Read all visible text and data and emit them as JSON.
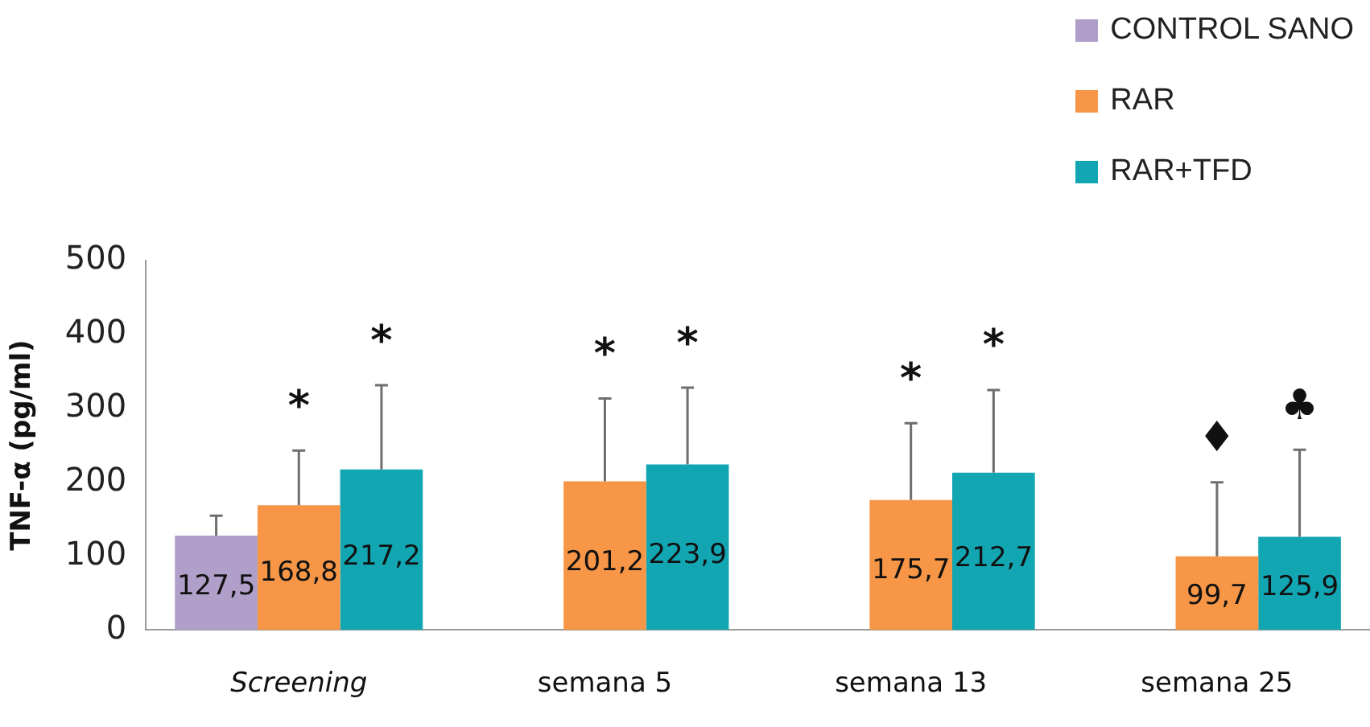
{
  "chart_data": {
    "type": "bar",
    "ylabel": "TNF-α (pg/ml)",
    "categories": [
      "Screening",
      "semana 5",
      "semana 13",
      "semana 25"
    ],
    "series": [
      {
        "name": "CONTROL SANO",
        "color": "#b09fc8",
        "values": [
          127.5,
          null,
          null,
          null
        ],
        "errors": [
          27,
          null,
          null,
          null
        ],
        "value_labels": [
          "127,5",
          null,
          null,
          null
        ]
      },
      {
        "name": "RAR",
        "color": "#f79646",
        "values": [
          168.8,
          201.2,
          175.7,
          99.7
        ],
        "errors": [
          74,
          112,
          104,
          100
        ],
        "value_labels": [
          "168,8",
          "201,2",
          "175,7",
          "99,7"
        ]
      },
      {
        "name": "RAR+TFD",
        "color": "#12a6b3",
        "values": [
          217.2,
          223.9,
          212.7,
          125.9
        ],
        "errors": [
          114,
          104,
          112,
          118
        ],
        "value_labels": [
          "217,2",
          "223,9",
          "212,7",
          "125,9"
        ]
      }
    ],
    "ylim": [
      0,
      500
    ],
    "yticks": [
      0,
      100,
      200,
      300,
      400,
      500
    ],
    "grid": false,
    "legend": "top right",
    "annotations": [
      "*",
      "*",
      "*",
      "*",
      "*",
      "*",
      "♦",
      "♣"
    ]
  }
}
